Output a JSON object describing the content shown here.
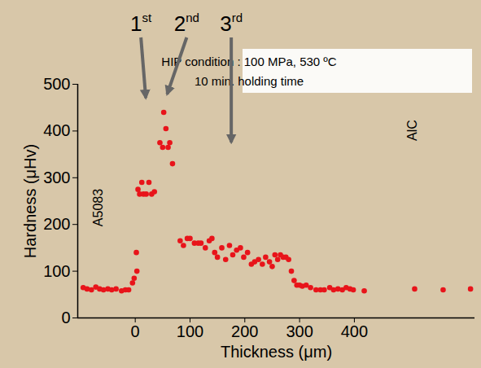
{
  "chart_data": {
    "type": "scatter",
    "x_label": "Thickness (μm)",
    "y_label": "Hardness (μHv)",
    "x": [
      -95,
      -88,
      -80,
      -72,
      -65,
      -58,
      -50,
      -43,
      -35,
      -25,
      -18,
      -12,
      -5,
      -2,
      3,
      2,
      5,
      8,
      12,
      15,
      20,
      25,
      30,
      35,
      45,
      50,
      52,
      56,
      60,
      63,
      68,
      82,
      88,
      95,
      100,
      108,
      115,
      120,
      128,
      135,
      140,
      145,
      150,
      158,
      165,
      172,
      178,
      185,
      192,
      198,
      205,
      212,
      218,
      225,
      232,
      238,
      245,
      250,
      255,
      260,
      265,
      270,
      275,
      280,
      285,
      290,
      295,
      300,
      305,
      312,
      320,
      330,
      338,
      345,
      355,
      362,
      370,
      378,
      385,
      392,
      398,
      418,
      510,
      562,
      612
    ],
    "values": [
      65,
      62,
      60,
      66,
      62,
      60,
      62,
      60,
      62,
      58,
      60,
      60,
      75,
      85,
      100,
      140,
      275,
      265,
      290,
      265,
      265,
      290,
      265,
      270,
      375,
      365,
      440,
      405,
      365,
      375,
      330,
      165,
      155,
      170,
      170,
      160,
      160,
      160,
      150,
      165,
      170,
      140,
      130,
      150,
      125,
      155,
      135,
      145,
      150,
      130,
      140,
      115,
      120,
      125,
      115,
      130,
      120,
      110,
      135,
      125,
      135,
      130,
      130,
      125,
      100,
      80,
      70,
      70,
      68,
      70,
      65,
      60,
      60,
      60,
      65,
      60,
      62,
      60,
      65,
      62,
      60,
      58,
      62,
      60,
      62
    ],
    "color": "#e8141a",
    "marker": "circle",
    "xlim": [
      -105,
      620
    ],
    "ylim": [
      0,
      500
    ],
    "xticks": [
      0,
      100,
      200,
      300,
      400
    ],
    "yticks": [
      0,
      100,
      200,
      300,
      400,
      500
    ],
    "grid": false,
    "annotations": [
      {
        "text": "1st",
        "x": 20,
        "y": 470
      },
      {
        "text": "2nd",
        "x": 59,
        "y": 478
      },
      {
        "text": "3rd",
        "x": 176,
        "y": 375
      }
    ],
    "inset_text": [
      "HIP condition : 100 MPa, 530 ºC",
      "10 min. holding time"
    ],
    "region_labels": [
      "A5083",
      "AlC"
    ]
  }
}
